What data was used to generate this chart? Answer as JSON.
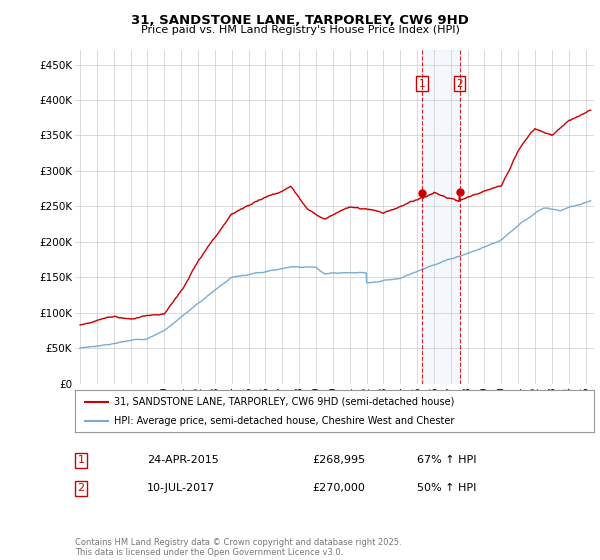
{
  "title": "31, SANDSTONE LANE, TARPORLEY, CW6 9HD",
  "subtitle": "Price paid vs. HM Land Registry's House Price Index (HPI)",
  "ylabel_ticks": [
    "£0",
    "£50K",
    "£100K",
    "£150K",
    "£200K",
    "£250K",
    "£300K",
    "£350K",
    "£400K",
    "£450K"
  ],
  "ytick_values": [
    0,
    50000,
    100000,
    150000,
    200000,
    250000,
    300000,
    350000,
    400000,
    450000
  ],
  "ylim": [
    0,
    470000
  ],
  "xlim_start": 1994.7,
  "xlim_end": 2025.5,
  "legend_line1": "31, SANDSTONE LANE, TARPORLEY, CW6 9HD (semi-detached house)",
  "legend_line2": "HPI: Average price, semi-detached house, Cheshire West and Chester",
  "transaction1_date": "24-APR-2015",
  "transaction1_price": "£268,995",
  "transaction1_hpi": "67% ↑ HPI",
  "transaction2_date": "10-JUL-2017",
  "transaction2_price": "£270,000",
  "transaction2_hpi": "50% ↑ HPI",
  "sale1_year": 2015.31,
  "sale2_year": 2017.52,
  "sale1_price": 268995,
  "sale2_price": 270000,
  "footer": "Contains HM Land Registry data © Crown copyright and database right 2025.\nThis data is licensed under the Open Government Licence v3.0.",
  "red_color": "#cc0000",
  "blue_color": "#7aadd4",
  "background_color": "#ffffff",
  "grid_color": "#cccccc"
}
